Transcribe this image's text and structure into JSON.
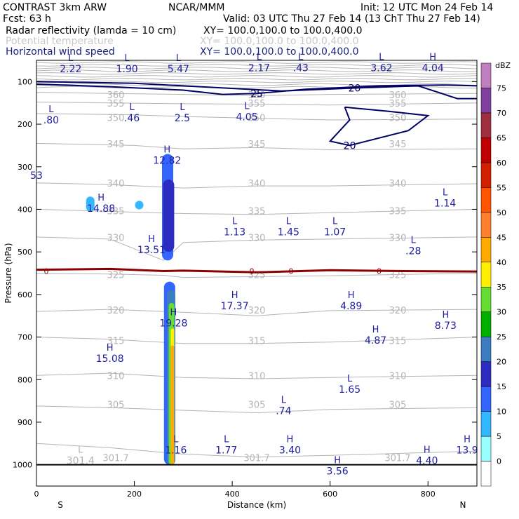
{
  "header": {
    "project": "CONTRAST  3km ARW",
    "fcst": "Fcst:    63 h",
    "center": "NCAR/MMM",
    "init": "Init: 12 UTC Mon 24 Feb 14",
    "valid": "Valid: 03 UTC Thu 27 Feb 14 (13 ChT Thu 27 Feb 14)",
    "field1_name": "Radar reflectivity (lamda = 10 cm)",
    "field1_xy": "XY=  100.0,100.0 to 100.0,400.0",
    "field2_name": "Potential temperature",
    "field2_xy": "XY= 100.0,100.0 to 100.0,400.0",
    "field3_name": "Horizontal wind speed",
    "field3_xy": "XY= 100.0,100.0 to 100.0,400.0"
  },
  "colors": {
    "reflectivity_field": "#000000",
    "theta_field": "#b4b4b4",
    "wind_field": "#1a237e",
    "wind_contour": "#000066",
    "zero_line": "#8b0000",
    "label_blue": "#2020a0"
  },
  "chart_data": {
    "type": "cross-section",
    "xlabel": "Distance (km)",
    "ylabel": "Pressure (hPa)",
    "xlim": [
      0,
      900
    ],
    "ylim": [
      1050,
      50
    ],
    "x_ticks": [
      0,
      200,
      400,
      600,
      800
    ],
    "y_ticks": [
      100,
      200,
      300,
      400,
      500,
      600,
      700,
      800,
      900,
      1000
    ],
    "x_end_labels": {
      "left": "S",
      "right": "N"
    },
    "colorbar": {
      "unit": "dBZ",
      "levels": [
        0,
        5,
        10,
        15,
        20,
        25,
        30,
        35,
        40,
        45,
        50,
        55,
        60,
        65,
        70,
        75
      ],
      "colors": [
        "#ffffff",
        "#98ffff",
        "#33b8ff",
        "#3366ff",
        "#2c2cc0",
        "#3c7cc0",
        "#00b000",
        "#66dd33",
        "#ffee00",
        "#ffaa00",
        "#ff8030",
        "#ff5500",
        "#d02000",
        "#c00000",
        "#a03040",
        "#8040a0",
        "#c080c0"
      ]
    },
    "theta_contours": [
      {
        "value": "360",
        "p": 132,
        "points": [
          [
            0,
            125
          ],
          [
            150,
            128
          ],
          [
            300,
            130
          ],
          [
            450,
            133
          ],
          [
            600,
            130
          ],
          [
            900,
            128
          ]
        ]
      },
      {
        "value": "355",
        "p": 152,
        "points": [
          [
            0,
            148
          ],
          [
            150,
            150
          ],
          [
            300,
            152
          ],
          [
            450,
            153
          ],
          [
            600,
            155
          ],
          [
            900,
            150
          ]
        ]
      },
      {
        "value": "350",
        "p": 186,
        "points": [
          [
            0,
            175
          ],
          [
            200,
            178
          ],
          [
            300,
            182
          ],
          [
            450,
            186
          ],
          [
            600,
            190
          ],
          [
            900,
            188
          ]
        ]
      },
      {
        "value": "345",
        "p": 248,
        "points": [
          [
            0,
            245
          ],
          [
            200,
            250
          ],
          [
            300,
            258
          ],
          [
            450,
            255
          ],
          [
            600,
            260
          ],
          [
            900,
            258
          ]
        ]
      },
      {
        "value": "340",
        "p": 340,
        "points": [
          [
            0,
            338
          ],
          [
            150,
            342
          ],
          [
            300,
            350
          ],
          [
            450,
            345
          ],
          [
            600,
            345
          ],
          [
            900,
            340
          ]
        ]
      },
      {
        "value": "335",
        "p": 405,
        "points": [
          [
            0,
            400
          ],
          [
            150,
            405
          ],
          [
            300,
            410
          ],
          [
            450,
            412
          ],
          [
            600,
            408
          ],
          [
            900,
            400
          ]
        ]
      },
      {
        "value": "330",
        "p": 468,
        "points": [
          [
            0,
            465
          ],
          [
            150,
            470
          ],
          [
            260,
            520
          ],
          [
            300,
            478
          ],
          [
            450,
            472
          ],
          [
            600,
            470
          ],
          [
            900,
            465
          ]
        ]
      },
      {
        "value": "325",
        "p": 555,
        "points": [
          [
            0,
            550
          ],
          [
            150,
            552
          ],
          [
            260,
            555
          ],
          [
            300,
            560
          ],
          [
            450,
            558
          ],
          [
            600,
            556
          ],
          [
            900,
            550
          ]
        ]
      },
      {
        "value": "320",
        "p": 638,
        "points": [
          [
            0,
            640
          ],
          [
            150,
            635
          ],
          [
            300,
            642
          ],
          [
            450,
            650
          ],
          [
            600,
            638
          ],
          [
            900,
            635
          ]
        ]
      },
      {
        "value": "315",
        "p": 710,
        "points": [
          [
            0,
            700
          ],
          [
            150,
            705
          ],
          [
            300,
            715
          ],
          [
            450,
            715
          ],
          [
            600,
            712
          ],
          [
            900,
            700
          ]
        ]
      },
      {
        "value": "310",
        "p": 792,
        "points": [
          [
            0,
            790
          ],
          [
            150,
            785
          ],
          [
            300,
            795
          ],
          [
            450,
            798
          ],
          [
            600,
            795
          ],
          [
            900,
            790
          ]
        ]
      },
      {
        "value": "305",
        "p": 860,
        "points": [
          [
            0,
            862
          ],
          [
            150,
            866
          ],
          [
            300,
            872
          ],
          [
            450,
            878
          ],
          [
            600,
            870
          ],
          [
            900,
            866
          ]
        ]
      },
      {
        "value": "301.7",
        "p": 985,
        "points": [
          [
            0,
            950
          ],
          [
            150,
            960
          ],
          [
            300,
            975
          ],
          [
            450,
            982
          ],
          [
            600,
            978
          ],
          [
            900,
            968
          ]
        ]
      }
    ],
    "zero_line": {
      "label": "0",
      "points": [
        [
          0,
          542
        ],
        [
          150,
          540
        ],
        [
          260,
          545
        ],
        [
          300,
          544
        ],
        [
          450,
          548
        ],
        [
          600,
          543
        ],
        [
          750,
          545
        ],
        [
          900,
          546
        ]
      ]
    },
    "wind_contours": [
      {
        "value": "25",
        "points": [
          [
            0,
            106
          ],
          [
            150,
            112
          ],
          [
            300,
            120
          ],
          [
            380,
            130
          ],
          [
            450,
            128
          ],
          [
            550,
            118
          ],
          [
            700,
            110
          ],
          [
            830,
            108
          ],
          [
            900,
            110
          ]
        ]
      },
      {
        "value": "20",
        "points": [
          [
            0,
            100
          ],
          [
            200,
            104
          ],
          [
            300,
            110
          ],
          [
            500,
            122
          ],
          [
            650,
            115
          ],
          [
            780,
            110
          ],
          [
            860,
            140
          ],
          [
            900,
            140
          ]
        ]
      },
      {
        "value": "20",
        "points": [
          [
            630,
            160
          ],
          [
            720,
            170
          ],
          [
            800,
            180
          ],
          [
            760,
            215
          ],
          [
            640,
            250
          ],
          [
            600,
            240
          ],
          [
            640,
            190
          ],
          [
            630,
            160
          ]
        ]
      }
    ],
    "reflectivity_cells": [
      {
        "x": 268,
        "p_top": 270,
        "p_bot": 520,
        "dbz": 10
      },
      {
        "x": 270,
        "p_top": 330,
        "p_bot": 500,
        "dbz": 15
      },
      {
        "x": 272,
        "p_top": 570,
        "p_bot": 1000,
        "dbz": 10
      },
      {
        "x": 275,
        "p_top": 590,
        "p_bot": 1000,
        "dbz": 20
      },
      {
        "x": 276,
        "p_top": 620,
        "p_bot": 1000,
        "dbz": 30
      },
      {
        "x": 278,
        "p_top": 680,
        "p_bot": 1000,
        "dbz": 35
      },
      {
        "x": 278,
        "p_top": 720,
        "p_bot": 1000,
        "dbz": 40
      },
      {
        "x": 110,
        "p_top": 370,
        "p_bot": 405,
        "dbz": 5
      },
      {
        "x": 210,
        "p_top": 380,
        "p_bot": 400,
        "dbz": 5
      }
    ],
    "hl_labels": [
      {
        "letter": "L",
        "value": "2.22",
        "x": 70,
        "p": 65
      },
      {
        "letter": "L",
        "value": "1.90",
        "x": 185,
        "p": 65
      },
      {
        "letter": "L",
        "value": "5.47",
        "x": 290,
        "p": 65
      },
      {
        "letter": "L",
        "value": "2.17",
        "x": 455,
        "p": 62
      },
      {
        "letter": "L",
        "value": ".43",
        "x": 540,
        "p": 62
      },
      {
        "letter": "L",
        "value": "3.62",
        "x": 705,
        "p": 62
      },
      {
        "letter": "H",
        "value": "4.04",
        "x": 810,
        "p": 62
      },
      {
        "letter": "L",
        "value": ".80",
        "x": 30,
        "p": 185
      },
      {
        "letter": "L",
        "value": ".46",
        "x": 195,
        "p": 180
      },
      {
        "letter": "L",
        "value": "2.5",
        "x": 298,
        "p": 180
      },
      {
        "letter": "L",
        "value": "4.05",
        "x": 430,
        "p": 178
      },
      {
        "letter": "H",
        "value": "12.82",
        "x": 267,
        "p": 280
      },
      {
        "letter": "H",
        "value": "14.88",
        "x": 132,
        "p": 393
      },
      {
        "letter": "L",
        "value": "1.14",
        "x": 835,
        "p": 380
      },
      {
        "letter": "L",
        "value": "1.13",
        "x": 405,
        "p": 448
      },
      {
        "letter": "L",
        "value": "1.45",
        "x": 515,
        "p": 448
      },
      {
        "letter": "L",
        "value": "1.07",
        "x": 610,
        "p": 448
      },
      {
        "letter": "H",
        "value": "13.51",
        "x": 235,
        "p": 490
      },
      {
        "letter": "L",
        "value": ".28",
        "x": 770,
        "p": 492
      },
      {
        "letter": "H",
        "value": "17.37",
        "x": 405,
        "p": 622
      },
      {
        "letter": "H",
        "value": "4.89",
        "x": 643,
        "p": 622
      },
      {
        "letter": "H",
        "value": "19.28",
        "x": 280,
        "p": 662
      },
      {
        "letter": "H",
        "value": "8.73",
        "x": 836,
        "p": 668
      },
      {
        "letter": "H",
        "value": "4.87",
        "x": 693,
        "p": 702
      },
      {
        "letter": "H",
        "value": "15.08",
        "x": 150,
        "p": 745
      },
      {
        "letter": "L",
        "value": "1.65",
        "x": 640,
        "p": 818
      },
      {
        "letter": "L",
        "value": ".74",
        "x": 505,
        "p": 868
      },
      {
        "letter": "L",
        "value": "1.16",
        "x": 285,
        "p": 960
      },
      {
        "letter": "L",
        "value": "1.77",
        "x": 388,
        "p": 960
      },
      {
        "letter": "H",
        "value": "3.40",
        "x": 518,
        "p": 960
      },
      {
        "letter": "H",
        "value": "4.40",
        "x": 798,
        "p": 985
      },
      {
        "letter": "H",
        "value": "13.9",
        "x": 880,
        "p": 960
      },
      {
        "letter": "H",
        "value": "3.56",
        "x": 615,
        "p": 1010
      }
    ],
    "theta_extra_labels": [
      {
        "letter": "L",
        "value": "301.4",
        "x": 90,
        "p": 985
      }
    ],
    "edge_labels": [
      {
        "value": "53",
        "x": 0,
        "p": 320
      }
    ]
  }
}
